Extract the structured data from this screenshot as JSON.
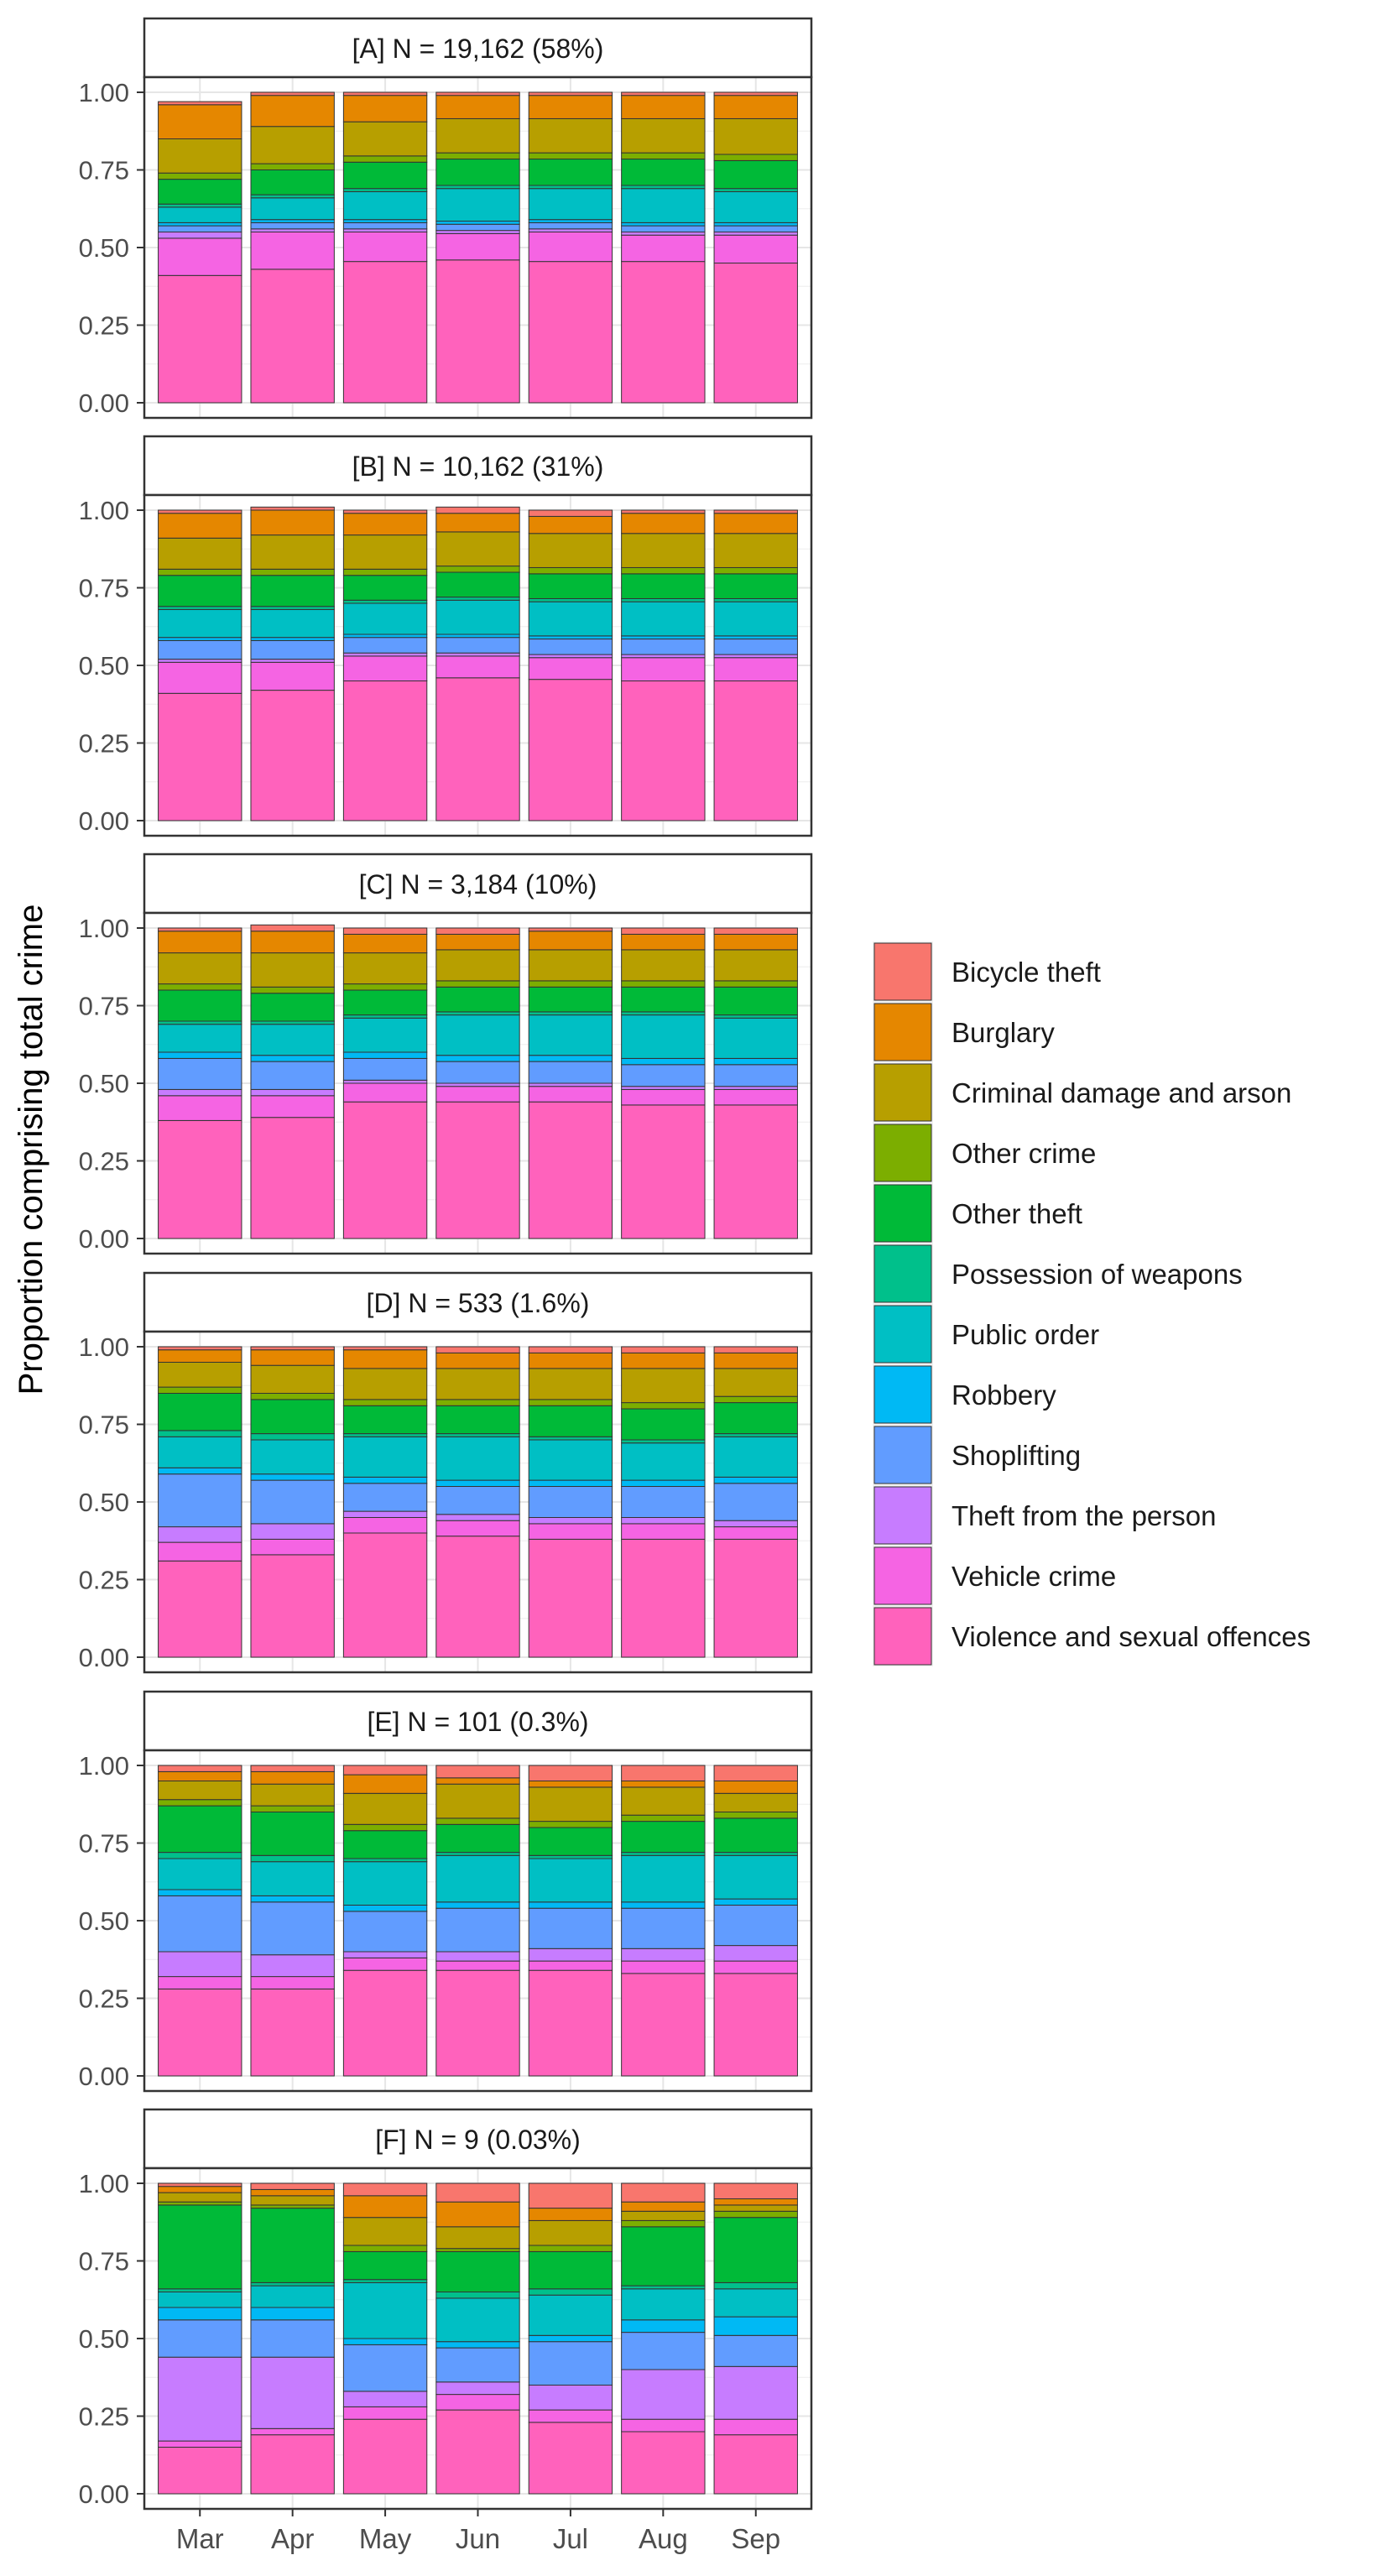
{
  "chart_data": {
    "type": "bar",
    "stacked": true,
    "ylabel": "Proportion comprising total crime",
    "xlabel": "",
    "categories": [
      "Mar",
      "Apr",
      "May",
      "Jun",
      "Jul",
      "Aug",
      "Sep"
    ],
    "y_ticks": [
      "0.00",
      "0.25",
      "0.50",
      "0.75",
      "1.00"
    ],
    "ylim": [
      0,
      1
    ],
    "legend_position": "right",
    "crime_types": [
      {
        "name": "Violence and sexual offences",
        "color": "#FF62BC"
      },
      {
        "name": "Vehicle crime",
        "color": "#F564E3"
      },
      {
        "name": "Theft from the person",
        "color": "#C77CFF"
      },
      {
        "name": "Shoplifting",
        "color": "#619CFF"
      },
      {
        "name": "Robbery",
        "color": "#00B9F4"
      },
      {
        "name": "Public order",
        "color": "#00BFC4"
      },
      {
        "name": "Possession of weapons",
        "color": "#00C08B"
      },
      {
        "name": "Other theft",
        "color": "#00BA38"
      },
      {
        "name": "Other crime",
        "color": "#7CAE00"
      },
      {
        "name": "Criminal damage and arson",
        "color": "#B79F00"
      },
      {
        "name": "Burglary",
        "color": "#E58700"
      },
      {
        "name": "Bicycle theft",
        "color": "#F8766D"
      }
    ],
    "legend_order": [
      "Bicycle theft",
      "Burglary",
      "Criminal damage and arson",
      "Other crime",
      "Other theft",
      "Possession of weapons",
      "Public order",
      "Robbery",
      "Shoplifting",
      "Theft from the person",
      "Vehicle crime",
      "Violence and sexual offences"
    ],
    "panels": [
      {
        "title": "[A] N = 19,162 (58%)",
        "bars": [
          [
            0.41,
            0.12,
            0.02,
            0.02,
            0.01,
            0.05,
            0.01,
            0.08,
            0.02,
            0.11,
            0.11,
            0.01
          ],
          [
            0.43,
            0.12,
            0.01,
            0.02,
            0.01,
            0.07,
            0.01,
            0.08,
            0.02,
            0.12,
            0.1,
            0.01
          ],
          [
            0.455,
            0.095,
            0.01,
            0.02,
            0.01,
            0.09,
            0.01,
            0.085,
            0.02,
            0.11,
            0.085,
            0.01
          ],
          [
            0.46,
            0.085,
            0.01,
            0.02,
            0.01,
            0.105,
            0.01,
            0.085,
            0.02,
            0.11,
            0.075,
            0.01
          ],
          [
            0.455,
            0.095,
            0.01,
            0.02,
            0.01,
            0.1,
            0.01,
            0.085,
            0.02,
            0.11,
            0.075,
            0.01
          ],
          [
            0.455,
            0.085,
            0.01,
            0.02,
            0.01,
            0.11,
            0.01,
            0.085,
            0.02,
            0.11,
            0.075,
            0.01
          ],
          [
            0.45,
            0.09,
            0.01,
            0.02,
            0.01,
            0.1,
            0.01,
            0.09,
            0.02,
            0.115,
            0.075,
            0.01
          ]
        ]
      },
      {
        "title": "[B] N = 10,162 (31%)",
        "bars": [
          [
            0.41,
            0.1,
            0.01,
            0.06,
            0.01,
            0.09,
            0.01,
            0.1,
            0.02,
            0.1,
            0.08,
            0.01
          ],
          [
            0.42,
            0.09,
            0.01,
            0.06,
            0.01,
            0.09,
            0.01,
            0.1,
            0.02,
            0.11,
            0.08,
            0.01
          ],
          [
            0.45,
            0.08,
            0.01,
            0.05,
            0.01,
            0.1,
            0.01,
            0.08,
            0.02,
            0.11,
            0.07,
            0.01
          ],
          [
            0.46,
            0.07,
            0.01,
            0.05,
            0.01,
            0.11,
            0.01,
            0.08,
            0.02,
            0.11,
            0.06,
            0.02
          ],
          [
            0.455,
            0.07,
            0.01,
            0.05,
            0.01,
            0.11,
            0.01,
            0.08,
            0.02,
            0.11,
            0.055,
            0.02
          ],
          [
            0.45,
            0.075,
            0.01,
            0.05,
            0.01,
            0.11,
            0.01,
            0.08,
            0.02,
            0.11,
            0.065,
            0.01
          ],
          [
            0.45,
            0.075,
            0.01,
            0.05,
            0.01,
            0.11,
            0.01,
            0.08,
            0.02,
            0.11,
            0.065,
            0.01
          ]
        ]
      },
      {
        "title": "[C] N = 3,184 (10%)",
        "bars": [
          [
            0.38,
            0.08,
            0.02,
            0.1,
            0.02,
            0.09,
            0.01,
            0.1,
            0.02,
            0.1,
            0.07,
            0.01
          ],
          [
            0.39,
            0.07,
            0.02,
            0.09,
            0.02,
            0.1,
            0.01,
            0.09,
            0.02,
            0.11,
            0.07,
            0.02
          ],
          [
            0.44,
            0.06,
            0.01,
            0.07,
            0.02,
            0.11,
            0.01,
            0.08,
            0.02,
            0.1,
            0.06,
            0.02
          ],
          [
            0.44,
            0.05,
            0.01,
            0.07,
            0.02,
            0.13,
            0.01,
            0.08,
            0.02,
            0.1,
            0.05,
            0.02
          ],
          [
            0.44,
            0.05,
            0.01,
            0.07,
            0.02,
            0.13,
            0.01,
            0.08,
            0.02,
            0.1,
            0.06,
            0.01
          ],
          [
            0.43,
            0.05,
            0.01,
            0.07,
            0.02,
            0.14,
            0.01,
            0.08,
            0.02,
            0.1,
            0.05,
            0.02
          ],
          [
            0.43,
            0.05,
            0.01,
            0.07,
            0.02,
            0.13,
            0.01,
            0.09,
            0.02,
            0.1,
            0.05,
            0.02
          ]
        ]
      },
      {
        "title": "[D] N = 533 (1.6%)",
        "bars": [
          [
            0.31,
            0.06,
            0.05,
            0.17,
            0.02,
            0.1,
            0.02,
            0.12,
            0.02,
            0.08,
            0.04,
            0.01
          ],
          [
            0.33,
            0.05,
            0.05,
            0.14,
            0.02,
            0.11,
            0.02,
            0.11,
            0.02,
            0.09,
            0.05,
            0.01
          ],
          [
            0.4,
            0.05,
            0.02,
            0.09,
            0.02,
            0.13,
            0.01,
            0.09,
            0.02,
            0.1,
            0.06,
            0.01
          ],
          [
            0.39,
            0.05,
            0.02,
            0.09,
            0.02,
            0.14,
            0.01,
            0.09,
            0.02,
            0.1,
            0.05,
            0.02
          ],
          [
            0.38,
            0.05,
            0.02,
            0.1,
            0.02,
            0.13,
            0.01,
            0.1,
            0.02,
            0.1,
            0.05,
            0.02
          ],
          [
            0.38,
            0.05,
            0.02,
            0.1,
            0.02,
            0.12,
            0.01,
            0.1,
            0.02,
            0.11,
            0.05,
            0.02
          ],
          [
            0.38,
            0.04,
            0.02,
            0.12,
            0.02,
            0.13,
            0.01,
            0.1,
            0.02,
            0.09,
            0.05,
            0.02
          ]
        ]
      },
      {
        "title": "[E] N = 101 (0.3%)",
        "bars": [
          [
            0.28,
            0.04,
            0.08,
            0.18,
            0.02,
            0.1,
            0.02,
            0.15,
            0.02,
            0.06,
            0.03,
            0.02
          ],
          [
            0.28,
            0.04,
            0.07,
            0.17,
            0.02,
            0.11,
            0.02,
            0.14,
            0.02,
            0.07,
            0.04,
            0.02
          ],
          [
            0.34,
            0.04,
            0.02,
            0.13,
            0.02,
            0.14,
            0.01,
            0.09,
            0.02,
            0.1,
            0.06,
            0.03
          ],
          [
            0.34,
            0.03,
            0.03,
            0.14,
            0.02,
            0.15,
            0.01,
            0.09,
            0.02,
            0.11,
            0.02,
            0.04
          ],
          [
            0.34,
            0.03,
            0.04,
            0.13,
            0.02,
            0.14,
            0.01,
            0.09,
            0.02,
            0.11,
            0.02,
            0.05
          ],
          [
            0.33,
            0.04,
            0.04,
            0.13,
            0.02,
            0.15,
            0.01,
            0.1,
            0.02,
            0.09,
            0.02,
            0.05
          ],
          [
            0.33,
            0.04,
            0.05,
            0.13,
            0.02,
            0.14,
            0.01,
            0.11,
            0.02,
            0.06,
            0.04,
            0.05
          ]
        ]
      },
      {
        "title": "[F] N = 9 (0.03%)",
        "bars": [
          [
            0.15,
            0.02,
            0.27,
            0.12,
            0.04,
            0.05,
            0.01,
            0.27,
            0.01,
            0.03,
            0.02,
            0.01
          ],
          [
            0.19,
            0.02,
            0.23,
            0.12,
            0.04,
            0.07,
            0.01,
            0.24,
            0.01,
            0.03,
            0.02,
            0.02
          ],
          [
            0.24,
            0.04,
            0.05,
            0.15,
            0.02,
            0.18,
            0.01,
            0.09,
            0.02,
            0.09,
            0.07,
            0.04
          ],
          [
            0.27,
            0.05,
            0.04,
            0.11,
            0.02,
            0.14,
            0.02,
            0.13,
            0.01,
            0.07,
            0.08,
            0.06
          ],
          [
            0.23,
            0.04,
            0.08,
            0.14,
            0.02,
            0.13,
            0.02,
            0.12,
            0.02,
            0.08,
            0.04,
            0.08
          ],
          [
            0.2,
            0.04,
            0.16,
            0.12,
            0.04,
            0.1,
            0.01,
            0.19,
            0.02,
            0.03,
            0.03,
            0.06
          ],
          [
            0.19,
            0.05,
            0.17,
            0.1,
            0.06,
            0.09,
            0.02,
            0.21,
            0.02,
            0.02,
            0.02,
            0.05
          ]
        ]
      }
    ]
  }
}
